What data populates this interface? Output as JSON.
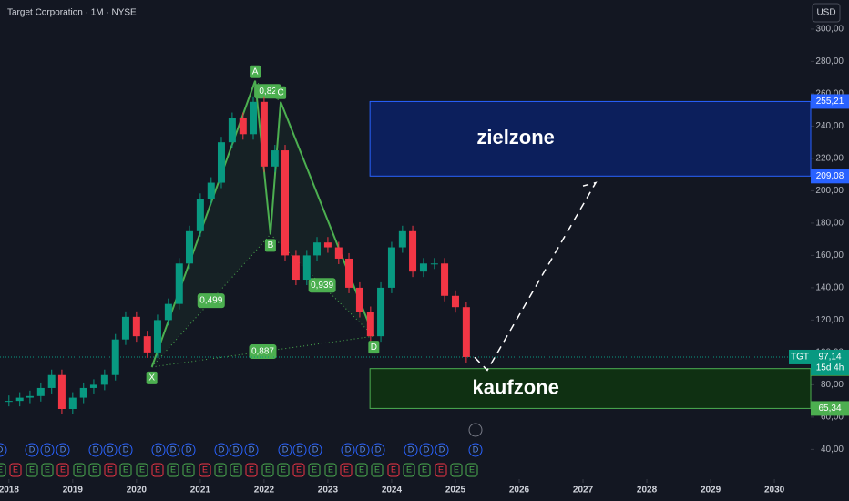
{
  "header": {
    "title": "Target Corporation · 1M · NYSE",
    "currency": "USD"
  },
  "chart_data": {
    "type": "candlestick",
    "x": [
      2018.0,
      2018.17,
      2018.33,
      2018.5,
      2018.67,
      2018.83,
      2019.0,
      2019.17,
      2019.33,
      2019.5,
      2019.67,
      2019.83,
      2020.0,
      2020.17,
      2020.33,
      2020.5,
      2020.67,
      2020.83,
      2021.0,
      2021.17,
      2021.33,
      2021.5,
      2021.67,
      2021.83,
      2022.0,
      2022.17,
      2022.33,
      2022.5,
      2022.67,
      2022.83,
      2023.0,
      2023.17,
      2023.33,
      2023.5,
      2023.67,
      2023.83,
      2024.0,
      2024.17,
      2024.33,
      2024.5,
      2024.67,
      2024.83,
      2025.0,
      2025.17
    ],
    "values": [
      70,
      72,
      73,
      78,
      86,
      65,
      72,
      78,
      80,
      86,
      108,
      122,
      110,
      100,
      120,
      130,
      155,
      175,
      195,
      205,
      230,
      245,
      235,
      255,
      215,
      225,
      160,
      145,
      160,
      168,
      165,
      158,
      140,
      125,
      110,
      140,
      165,
      175,
      150,
      155,
      155,
      135,
      128,
      97.14
    ],
    "up_color": "#089981",
    "down_color": "#f23645",
    "xlim": [
      2017.86,
      2030.57
    ],
    "ylim": [
      25,
      318
    ],
    "xticks": [
      2018,
      2019,
      2020,
      2021,
      2022,
      2023,
      2024,
      2025,
      2026,
      2027,
      2028,
      2029,
      2030
    ],
    "yticks": [
      {
        "value": 40,
        "label": "40,00"
      },
      {
        "value": 60,
        "label": "60,00"
      },
      {
        "value": 80,
        "label": "80,00"
      },
      {
        "value": 100,
        "label": "100,00"
      },
      {
        "value": 120,
        "label": "120,00"
      },
      {
        "value": 140,
        "label": "140,00"
      },
      {
        "value": 160,
        "label": "160,00"
      },
      {
        "value": 180,
        "label": "180,00"
      },
      {
        "value": 200,
        "label": "200,00"
      },
      {
        "value": 220,
        "label": "220,00"
      },
      {
        "value": 240,
        "label": "240,00"
      },
      {
        "value": 260,
        "label": "260,00"
      },
      {
        "value": 280,
        "label": "280,00"
      },
      {
        "value": 300,
        "label": "300,00"
      }
    ],
    "pattern": {
      "color": "#4caf50",
      "points": [
        {
          "label": "X",
          "x": 2020.24,
          "y": 91
        },
        {
          "label": "A",
          "x": 2021.86,
          "y": 268
        },
        {
          "label": "B",
          "x": 2022.1,
          "y": 173
        },
        {
          "label": "C",
          "x": 2022.26,
          "y": 255
        },
        {
          "label": "D",
          "x": 2023.72,
          "y": 110
        }
      ],
      "ratios": [
        "0,499",
        "0,82",
        "0,939",
        "0,887"
      ]
    },
    "zones": [
      {
        "label": "zielzone",
        "range": [
          209.08,
          255.21
        ],
        "range_labels": [
          "209,08",
          "255,21"
        ],
        "x_start": 2023.66,
        "color": "#0c1f5c",
        "border": "#2962ff"
      },
      {
        "label": "kaufzone",
        "range": [
          65.34,
          89.97
        ],
        "range_labels": [
          "65,34",
          "89,97"
        ],
        "x_start": 2023.66,
        "color": "#0f3012",
        "border": "#4caf50"
      }
    ],
    "last_price": {
      "value": 97.14,
      "label": "97,14",
      "symbol": "TGT",
      "countdown": "15d 4h"
    },
    "projection": {
      "x": [
        2025.3,
        2025.5,
        2027.2,
        2027.0
      ],
      "values": [
        97,
        89,
        205,
        203
      ]
    },
    "events": {
      "dividend": "D",
      "earnings": "E"
    }
  }
}
